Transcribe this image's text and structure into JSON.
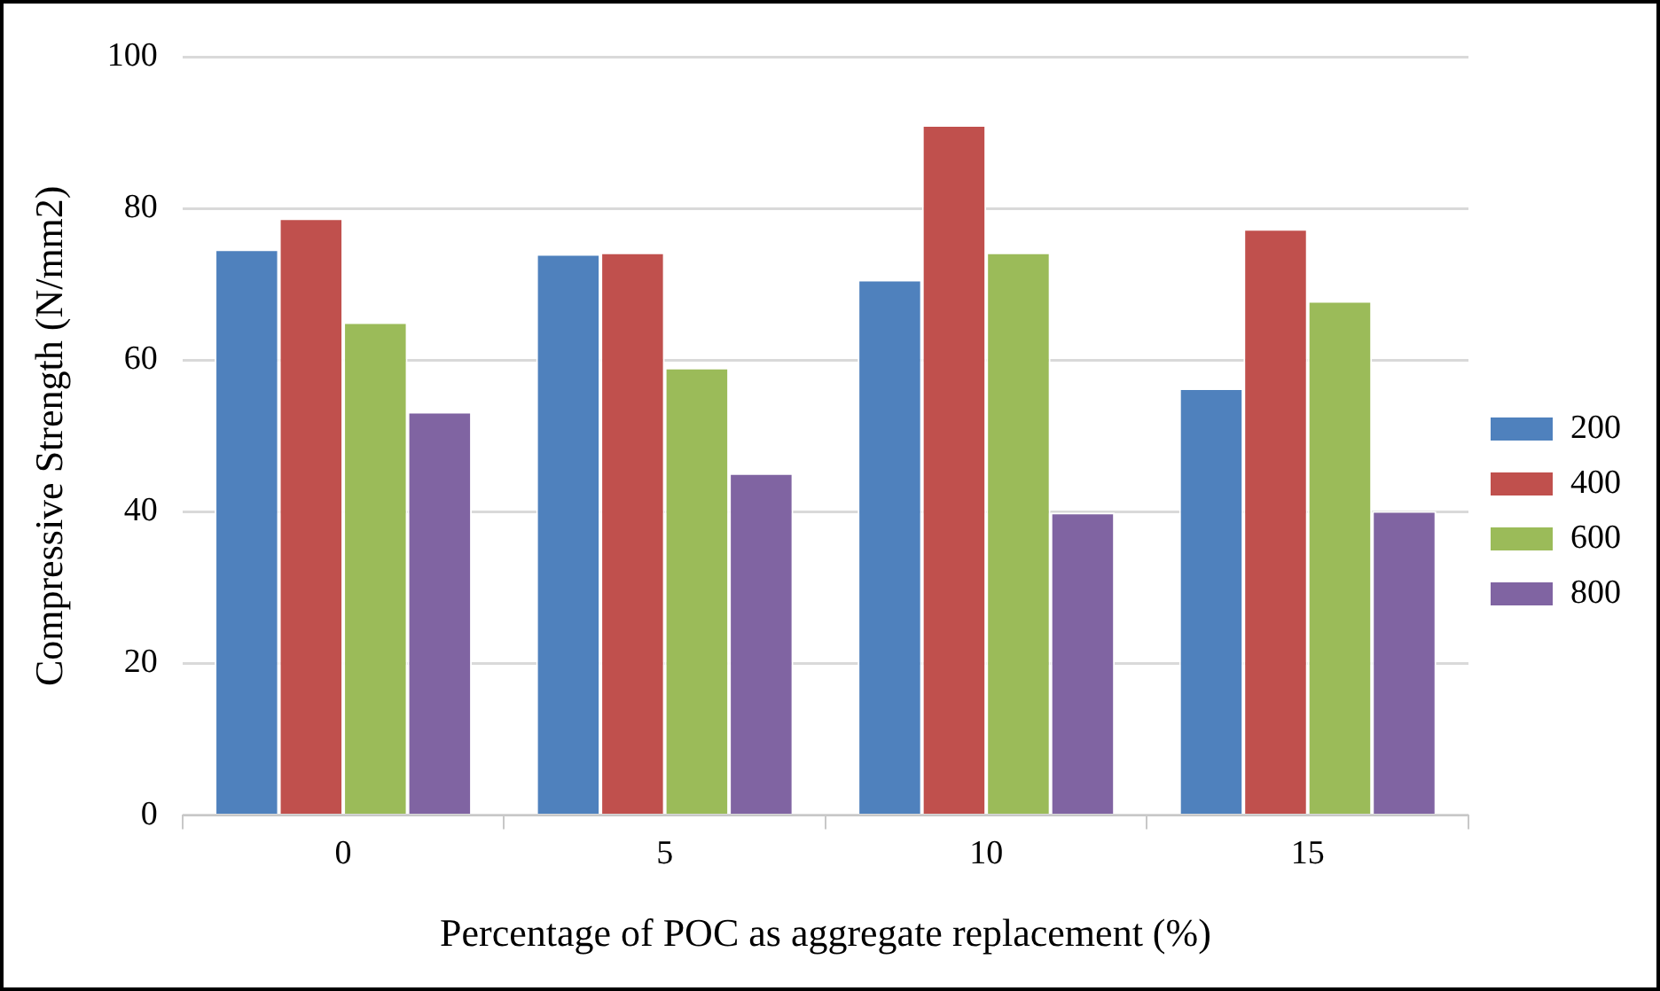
{
  "chart_data": {
    "type": "bar",
    "xlabel": "Percentage of POC as aggregate replacement (%)",
    "ylabel": "Compressive Strength (N/mm2)",
    "categories": [
      "0",
      "5",
      "10",
      "15"
    ],
    "series": [
      {
        "name": "200",
        "color": "#4f81bd",
        "values": [
          74.6,
          74.0,
          70.6,
          56.3
        ]
      },
      {
        "name": "400",
        "color": "#c0504d",
        "values": [
          78.7,
          74.2,
          91.0,
          77.3
        ]
      },
      {
        "name": "600",
        "color": "#9bbb59",
        "values": [
          65.0,
          59.0,
          74.2,
          67.8
        ]
      },
      {
        "name": "800",
        "color": "#8064a2",
        "values": [
          53.2,
          45.1,
          39.9,
          40.1
        ]
      }
    ],
    "ylim": [
      0,
      100
    ],
    "yticks": [
      0,
      20,
      40,
      60,
      80,
      100
    ],
    "grid": "y",
    "legend": "right"
  }
}
